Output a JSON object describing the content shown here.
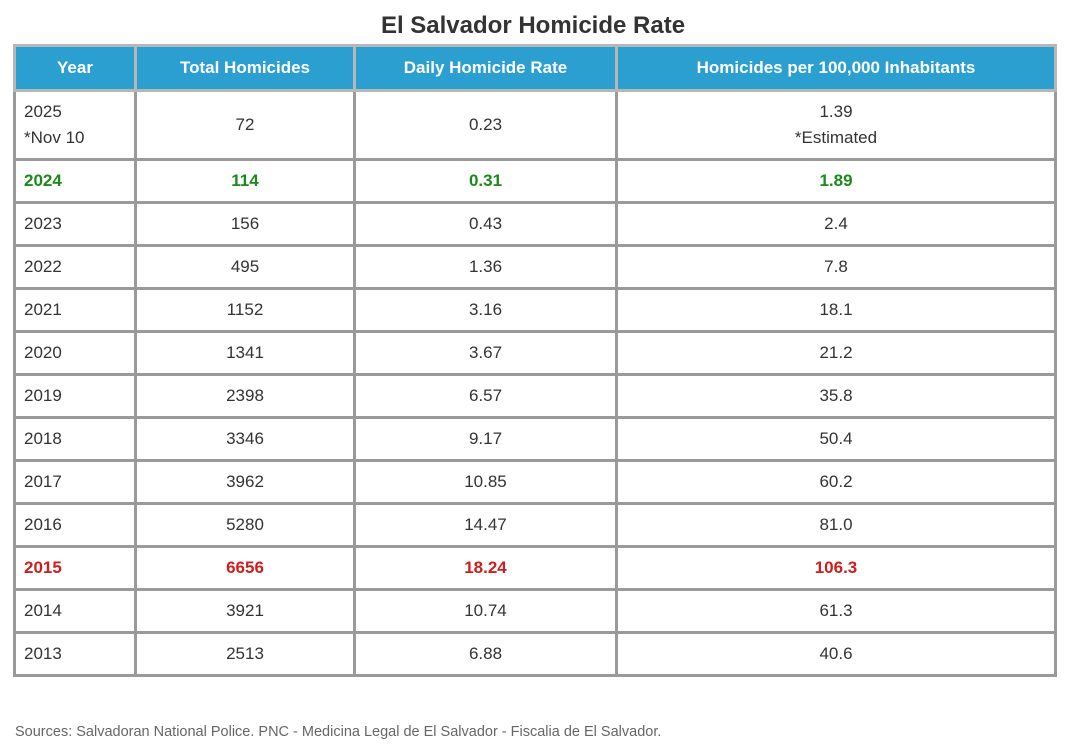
{
  "title": "El Salvador Homicide Rate",
  "columns": [
    "Year",
    "Total Homicides",
    "Daily Homicide Rate",
    "Homicides per 100,000 Inhabitants"
  ],
  "rows": [
    {
      "year": "2025",
      "year_note": "*Nov 10",
      "total": "72",
      "daily": "0.23",
      "per100k": "1.39",
      "per100k_note": "*Estimated"
    },
    {
      "year": "2024",
      "total": "114",
      "daily": "0.31",
      "per100k": "1.89",
      "highlight": "green"
    },
    {
      "year": "2023",
      "total": "156",
      "daily": "0.43",
      "per100k": "2.4"
    },
    {
      "year": "2022",
      "total": "495",
      "daily": "1.36",
      "per100k": "7.8"
    },
    {
      "year": "2021",
      "total": "1152",
      "daily": "3.16",
      "per100k": "18.1"
    },
    {
      "year": "2020",
      "total": "1341",
      "daily": "3.67",
      "per100k": "21.2"
    },
    {
      "year": "2019",
      "total": "2398",
      "daily": "6.57",
      "per100k": "35.8"
    },
    {
      "year": "2018",
      "total": "3346",
      "daily": "9.17",
      "per100k": "50.4"
    },
    {
      "year": "2017",
      "total": "3962",
      "daily": "10.85",
      "per100k": "60.2"
    },
    {
      "year": "2016",
      "total": "5280",
      "daily": "14.47",
      "per100k": "81.0"
    },
    {
      "year": "2015",
      "total": "6656",
      "daily": "18.24",
      "per100k": "106.3",
      "highlight": "red"
    },
    {
      "year": "2014",
      "total": "3921",
      "daily": "10.74",
      "per100k": "61.3"
    },
    {
      "year": "2013",
      "total": "2513",
      "daily": "6.88",
      "per100k": "40.6"
    }
  ],
  "colors": {
    "header_bg": "#2a9fd0",
    "highlight_green": "#1a8a1a",
    "highlight_red": "#d01e1e"
  },
  "sources": "Sources: Salvadoran National Police. PNC - Medicina Legal de El Salvador - Fiscalia de El Salvador."
}
